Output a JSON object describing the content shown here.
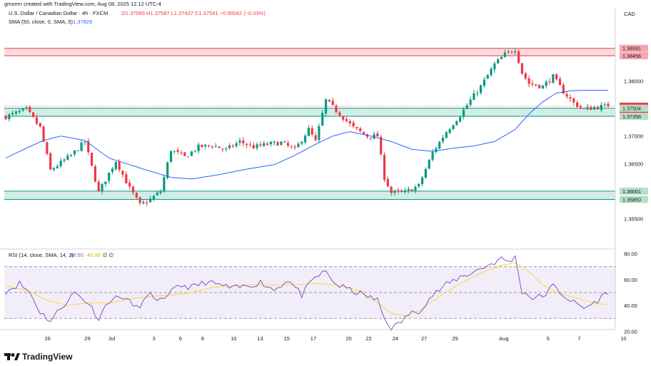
{
  "header": {
    "created_by": "gmzern created with TradingView.com, Aug 08, 2025 12:12 UTC-4",
    "symbol": "U.S. Dollar / Canadian Dollar · 4h · FXCM",
    "ohlc": "O1.37583 H1.37587 L1.37427 C1.37541 −0.00042 (−0.03%)",
    "sma_label": "SMA (50, close, 0, SMA, 5)",
    "sma_value": "1.37829",
    "rsi_label": "RSI (14, close, SMA, 14, 2)",
    "rsi_value": "48.50",
    "rsi_ma_value": "40.99",
    "rsi_extra": "∅ ∅"
  },
  "currency": "CAD",
  "logo": "TradingView",
  "colors": {
    "up": "#089981",
    "down": "#f23645",
    "sma": "#2962ff",
    "rsi": "#7e57c2",
    "rsi_ma": "#fdd835",
    "resistance": "#f23645",
    "support": "#089981"
  },
  "price_ticks": [
    "1.38000",
    "1.37000",
    "1.36500",
    "1.35500"
  ],
  "price_labels": [
    {
      "text": "1.38591",
      "value": 1.38591,
      "color": "#f7a7b0",
      "fg": "#131722"
    },
    {
      "text": "1.38456",
      "value": 1.38456,
      "color": "#f7a7b0",
      "fg": "#131722"
    },
    {
      "text": "1.37541",
      "value": 1.37541,
      "color": "#f23645",
      "fg": "#ffffff"
    },
    {
      "text": "47:07",
      "value": 1.37395,
      "color": "#f23645",
      "fg": "#ffffff"
    },
    {
      "text": "1.37504",
      "value": 1.37504,
      "color": "#b7dfc7",
      "fg": "#131722"
    },
    {
      "text": "1.37358",
      "value": 1.37358,
      "color": "#b7dfc7",
      "fg": "#131722"
    },
    {
      "text": "1.36001",
      "value": 1.36001,
      "color": "#b7dfc7",
      "fg": "#131722"
    },
    {
      "text": "1.35850",
      "value": 1.3585,
      "color": "#b7dfc7",
      "fg": "#131722"
    }
  ],
  "rsi_ticks": [
    "80.00",
    "60.00",
    "40.00",
    "20.00"
  ],
  "x_ticks": [
    "26",
    "29",
    "Jul",
    "3",
    "6",
    "8",
    "10",
    "13",
    "15",
    "17",
    "20",
    "22",
    "24",
    "27",
    "29",
    "Aug",
    "5",
    "7",
    "10"
  ],
  "chart_data": {
    "type": "candlestick",
    "title": "U.S. Dollar / Canadian Dollar · 4h · FXCM",
    "x_axis": {
      "type": "date",
      "range": [
        "2025-06-25",
        "2025-08-08"
      ]
    },
    "price_range": [
      1.353,
      1.3895
    ],
    "rsi_range": [
      18,
      82
    ],
    "rsi_levels": [
      70,
      50,
      30
    ],
    "zones": [
      {
        "kind": "resistance",
        "low": 1.38456,
        "high": 1.38591
      },
      {
        "kind": "support",
        "low": 1.37358,
        "high": 1.37504
      },
      {
        "kind": "support",
        "low": 1.3585,
        "high": 1.36001
      }
    ],
    "last_close": 1.37541,
    "sma_last": 1.37829,
    "rsi_last": 48.5,
    "rsi_ma_last": 40.99,
    "close_path": [
      [
        0,
        1.3735
      ],
      [
        6,
        1.3748
      ],
      [
        10,
        1.3715
      ],
      [
        13,
        1.3638
      ],
      [
        19,
        1.3665
      ],
      [
        23,
        1.369
      ],
      [
        27,
        1.3598
      ],
      [
        32,
        1.3655
      ],
      [
        36,
        1.3605
      ],
      [
        39,
        1.3575
      ],
      [
        42,
        1.3585
      ],
      [
        45,
        1.36
      ],
      [
        48,
        1.3675
      ],
      [
        52,
        1.3662
      ],
      [
        56,
        1.368
      ],
      [
        60,
        1.3683
      ],
      [
        64,
        1.3675
      ],
      [
        68,
        1.369
      ],
      [
        72,
        1.368
      ],
      [
        76,
        1.3685
      ],
      [
        80,
        1.3688
      ],
      [
        84,
        1.3675
      ],
      [
        88,
        1.3712
      ],
      [
        90,
        1.369
      ],
      [
        93,
        1.3765
      ],
      [
        97,
        1.374
      ],
      [
        101,
        1.3715
      ],
      [
        105,
        1.37
      ],
      [
        108,
        1.37
      ],
      [
        110,
        1.3625
      ],
      [
        112,
        1.3597
      ],
      [
        116,
        1.3598
      ],
      [
        120,
        1.361
      ],
      [
        124,
        1.367
      ],
      [
        128,
        1.3708
      ],
      [
        132,
        1.3738
      ],
      [
        135,
        1.3765
      ],
      [
        138,
        1.379
      ],
      [
        142,
        1.383
      ],
      [
        145,
        1.3848
      ],
      [
        148,
        1.3858
      ],
      [
        150,
        1.3815
      ],
      [
        152,
        1.3795
      ],
      [
        156,
        1.379
      ],
      [
        159,
        1.3808
      ],
      [
        162,
        1.378
      ],
      [
        165,
        1.376
      ],
      [
        168,
        1.3748
      ],
      [
        171,
        1.3752
      ],
      [
        174,
        1.3754
      ]
    ],
    "sma_path": [
      [
        0,
        1.366
      ],
      [
        6,
        1.3678
      ],
      [
        11,
        1.3692
      ],
      [
        16,
        1.37
      ],
      [
        23,
        1.3692
      ],
      [
        30,
        1.366
      ],
      [
        40,
        1.364
      ],
      [
        48,
        1.3625
      ],
      [
        54,
        1.3622
      ],
      [
        62,
        1.363
      ],
      [
        70,
        1.364
      ],
      [
        78,
        1.3648
      ],
      [
        84,
        1.3665
      ],
      [
        90,
        1.3685
      ],
      [
        95,
        1.37
      ],
      [
        100,
        1.3708
      ],
      [
        106,
        1.37
      ],
      [
        112,
        1.369
      ],
      [
        118,
        1.3676
      ],
      [
        124,
        1.3672
      ],
      [
        130,
        1.3678
      ],
      [
        136,
        1.3682
      ],
      [
        142,
        1.369
      ],
      [
        148,
        1.3712
      ],
      [
        152,
        1.374
      ],
      [
        156,
        1.3762
      ],
      [
        160,
        1.3778
      ],
      [
        164,
        1.3782
      ],
      [
        168,
        1.3783
      ],
      [
        172,
        1.3783
      ]
    ],
    "rsi_path": [
      [
        0,
        51
      ],
      [
        4,
        57
      ],
      [
        7,
        50
      ],
      [
        10,
        35
      ],
      [
        13,
        28
      ],
      [
        16,
        38
      ],
      [
        20,
        50
      ],
      [
        24,
        42
      ],
      [
        27,
        30
      ],
      [
        30,
        44
      ],
      [
        34,
        47
      ],
      [
        38,
        38
      ],
      [
        42,
        48
      ],
      [
        46,
        43
      ],
      [
        50,
        56
      ],
      [
        54,
        54
      ],
      [
        58,
        58
      ],
      [
        62,
        56
      ],
      [
        66,
        53
      ],
      [
        70,
        55
      ],
      [
        74,
        58
      ],
      [
        78,
        52
      ],
      [
        82,
        60
      ],
      [
        86,
        48
      ],
      [
        90,
        62
      ],
      [
        93,
        66
      ],
      [
        96,
        56
      ],
      [
        100,
        52
      ],
      [
        104,
        48
      ],
      [
        108,
        44
      ],
      [
        110,
        30
      ],
      [
        112,
        23
      ],
      [
        114,
        25
      ],
      [
        117,
        33
      ],
      [
        120,
        36
      ],
      [
        124,
        48
      ],
      [
        128,
        56
      ],
      [
        132,
        62
      ],
      [
        136,
        66
      ],
      [
        140,
        71
      ],
      [
        144,
        76
      ],
      [
        146,
        74
      ],
      [
        148,
        77
      ],
      [
        150,
        51
      ],
      [
        153,
        46
      ],
      [
        156,
        47
      ],
      [
        159,
        55
      ],
      [
        162,
        48
      ],
      [
        165,
        42
      ],
      [
        168,
        38
      ],
      [
        171,
        42
      ],
      [
        174,
        48.5
      ]
    ],
    "rsi_ma_path": [
      [
        0,
        55
      ],
      [
        6,
        52
      ],
      [
        12,
        44
      ],
      [
        18,
        40
      ],
      [
        24,
        42
      ],
      [
        30,
        42
      ],
      [
        36,
        45
      ],
      [
        42,
        47
      ],
      [
        48,
        48
      ],
      [
        54,
        50
      ],
      [
        60,
        54
      ],
      [
        66,
        55
      ],
      [
        72,
        56
      ],
      [
        78,
        56
      ],
      [
        84,
        56
      ],
      [
        90,
        57
      ],
      [
        96,
        56
      ],
      [
        102,
        52
      ],
      [
        108,
        42
      ],
      [
        112,
        34
      ],
      [
        116,
        32
      ],
      [
        120,
        36
      ],
      [
        126,
        47
      ],
      [
        132,
        57
      ],
      [
        138,
        65
      ],
      [
        144,
        71
      ],
      [
        148,
        73
      ],
      [
        152,
        66
      ],
      [
        156,
        56
      ],
      [
        160,
        50
      ],
      [
        164,
        47
      ],
      [
        168,
        44
      ],
      [
        172,
        41
      ],
      [
        174,
        41
      ]
    ]
  }
}
